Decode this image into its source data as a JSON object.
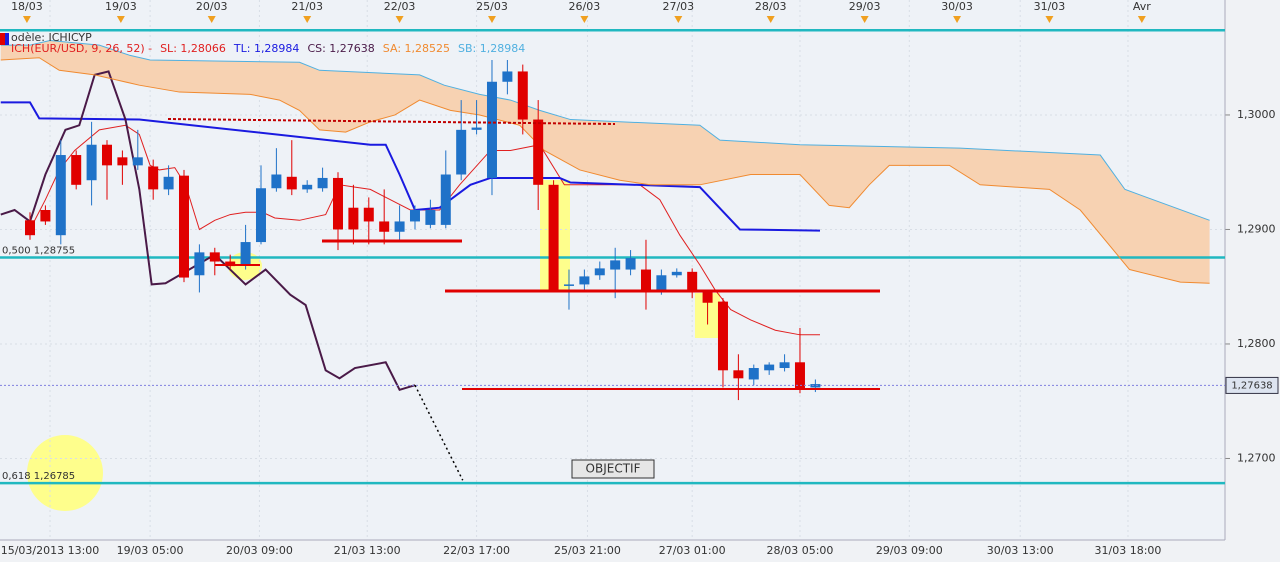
{
  "chart_data": {
    "type": "candlestick",
    "xlim": [
      -1.948,
      77.6
    ],
    "ylim": [
      1.26288,
      1.31004
    ],
    "grid": true,
    "xticks": [
      {
        "value": 1.3,
        "label": "15/03/2013 13:00"
      },
      {
        "value": 7.8,
        "label": "19/03 05:00"
      },
      {
        "value": 14.9,
        "label": "20/03 09:00"
      },
      {
        "value": 21.9,
        "label": "21/03 13:00"
      },
      {
        "value": 29.0,
        "label": "22/03 17:00"
      },
      {
        "value": 36.2,
        "label": "25/03 21:00"
      },
      {
        "value": 43.0,
        "label": "27/03 01:00"
      },
      {
        "value": 50.0,
        "label": "28/03 05:00"
      },
      {
        "value": 57.1,
        "label": "29/03 09:00"
      },
      {
        "value": 64.3,
        "label": "30/03 13:00"
      },
      {
        "value": 71.3,
        "label": "31/03 18:00"
      }
    ],
    "x2ticks": [
      {
        "value": -0.2,
        "label": "18/03"
      },
      {
        "value": 5.9,
        "label": "19/03"
      },
      {
        "value": 11.8,
        "label": "20/03"
      },
      {
        "value": 18.0,
        "label": "21/03"
      },
      {
        "value": 24.0,
        "label": "22/03"
      },
      {
        "value": 30.0,
        "label": "25/03"
      },
      {
        "value": 36.0,
        "label": "26/03"
      },
      {
        "value": 42.1,
        "label": "27/03"
      },
      {
        "value": 48.1,
        "label": "28/03"
      },
      {
        "value": 54.2,
        "label": "29/03"
      },
      {
        "value": 60.2,
        "label": "30/03"
      },
      {
        "value": 66.2,
        "label": "31/03"
      },
      {
        "value": 72.2,
        "label": "Avr"
      }
    ],
    "yticks": [
      {
        "value": 1.3,
        "label": "1,3000"
      },
      {
        "value": 1.29,
        "label": "1,2900"
      },
      {
        "value": 1.28,
        "label": "1,2800"
      },
      {
        "value": 1.27,
        "label": "1,2700"
      }
    ],
    "model_label": "odèle: ICHICYP",
    "indicator_label": {
      "text": "ICH(EUR/USD, 9, 26, 52) -",
      "color": "#e02020"
    },
    "up_color": "#1f72c8",
    "down_color": "#e00000",
    "cloud_color": "#f7d2b2",
    "candles": {
      "x": [
        0,
        1,
        2,
        3,
        4,
        5,
        6,
        7,
        8,
        9,
        10,
        11,
        12,
        13,
        14,
        15,
        16,
        17,
        18,
        19,
        20,
        21,
        22,
        23,
        24,
        25,
        26,
        27,
        28,
        29,
        30,
        31,
        32,
        33,
        34,
        35,
        36,
        37,
        38,
        39,
        40,
        41,
        42,
        43,
        44,
        45,
        46,
        47,
        48,
        49,
        50,
        51
      ],
      "open": [
        1.2908,
        1.2917,
        1.2895,
        1.2965,
        1.2943,
        1.2974,
        1.2963,
        1.2956,
        1.2955,
        1.2935,
        1.2947,
        1.286,
        1.288,
        1.2872,
        1.2869,
        1.2889,
        1.2936,
        1.2946,
        1.2935,
        1.2936,
        1.2945,
        1.2919,
        1.2919,
        1.2907,
        1.2898,
        1.2907,
        1.2904,
        1.2904,
        1.2948,
        1.2987,
        1.2945,
        1.3029,
        1.3038,
        1.2996,
        1.2939,
        1.2851,
        1.2852,
        1.286,
        1.2865,
        1.2865,
        1.2865,
        1.2847,
        1.286,
        1.2863,
        1.2845,
        1.2837,
        1.2777,
        1.2769,
        1.2777,
        1.2779,
        1.2784,
        1.2762
      ],
      "high": [
        1.2915,
        1.2921,
        1.2978,
        1.2969,
        1.2994,
        1.2978,
        1.2969,
        1.2987,
        1.2961,
        1.2956,
        1.2952,
        1.2887,
        1.2884,
        1.2878,
        1.2904,
        1.2956,
        1.2971,
        1.2978,
        1.2943,
        1.2954,
        1.295,
        1.2939,
        1.2928,
        1.2935,
        1.2921,
        1.2921,
        1.2926,
        1.2969,
        1.3013,
        1.3013,
        1.3048,
        1.3048,
        1.3044,
        1.3013,
        1.2943,
        1.2865,
        1.2865,
        1.2872,
        1.2884,
        1.2882,
        1.2891,
        1.2865,
        1.2866,
        1.2866,
        1.2847,
        1.284,
        1.2791,
        1.2782,
        1.2784,
        1.2791,
        1.2814,
        1.2769
      ],
      "low": [
        1.2891,
        1.2904,
        1.2887,
        1.2935,
        1.2921,
        1.2926,
        1.2939,
        1.2952,
        1.2926,
        1.293,
        1.2854,
        1.2845,
        1.286,
        1.2865,
        1.2865,
        1.2887,
        1.2933,
        1.293,
        1.2932,
        1.2933,
        1.2882,
        1.2887,
        1.2887,
        1.2887,
        1.2891,
        1.29,
        1.2901,
        1.2901,
        1.2943,
        1.2983,
        1.293,
        1.3018,
        1.2983,
        1.2917,
        1.2845,
        1.283,
        1.2847,
        1.2856,
        1.284,
        1.286,
        1.283,
        1.2843,
        1.2858,
        1.284,
        1.2817,
        1.2762,
        1.2751,
        1.2764,
        1.2773,
        1.2776,
        1.2757,
        1.2758
      ],
      "close": [
        1.2895,
        1.2907,
        1.2965,
        1.2939,
        1.2974,
        1.2956,
        1.2956,
        1.2963,
        1.2935,
        1.2946,
        1.2858,
        1.288,
        1.2872,
        1.2868,
        1.2889,
        1.2936,
        1.2948,
        1.2935,
        1.2939,
        1.2945,
        1.29,
        1.29,
        1.2907,
        1.2898,
        1.2907,
        1.2917,
        1.2917,
        1.2948,
        1.2987,
        1.2989,
        1.3029,
        1.3038,
        1.2996,
        1.2939,
        1.2847,
        1.2852,
        1.2859,
        1.2866,
        1.2873,
        1.2875,
        1.2847,
        1.286,
        1.2863,
        1.2845,
        1.2836,
        1.2777,
        1.277,
        1.2779,
        1.2782,
        1.2784,
        1.276,
        1.2765
      ]
    },
    "series": [
      {
        "name": "SL: 1,28066",
        "color": "#e02020",
        "width": 1,
        "x": [
          0,
          1.0,
          1.9,
          2.9,
          4.5,
          6.2,
          7.1,
          7.8,
          8.4,
          9.4,
          10.1,
          11.0,
          12.0,
          13.0,
          14.0,
          15.1,
          15.9,
          17.5,
          19.2,
          20.1,
          21.1,
          22.1,
          23.4,
          24.7,
          26.6,
          27.9,
          29.9,
          31.2,
          33.1,
          34.7,
          39.6,
          40.9,
          42.2,
          43.5,
          44.5,
          45.5,
          46.8,
          48.4,
          50.0,
          51.3
        ],
        "values": [
          1.29,
          1.2926,
          1.2952,
          1.2969,
          1.2987,
          1.2991,
          1.2983,
          1.2956,
          1.2952,
          1.2954,
          1.2939,
          1.29,
          1.2908,
          1.2913,
          1.2915,
          1.2915,
          1.291,
          1.2908,
          1.2913,
          1.2939,
          1.2937,
          1.2935,
          1.2926,
          1.2917,
          1.2917,
          1.2939,
          1.2969,
          1.2969,
          1.2974,
          1.2939,
          1.2939,
          1.2926,
          1.2895,
          1.2869,
          1.2847,
          1.283,
          1.2821,
          1.2812,
          1.2808,
          1.2808
        ]
      },
      {
        "name": "TL: 1,28984",
        "color": "#1a1ae0",
        "width": 2,
        "x": [
          -1.9,
          0,
          0.6,
          7.1,
          22.1,
          23.1,
          24.0,
          25.0,
          26.6,
          28.6,
          29.9,
          34.4,
          35.1,
          43.5,
          46.1,
          51.3
        ],
        "values": [
          1.3011,
          1.3011,
          1.2997,
          1.2996,
          1.2974,
          1.2974,
          1.2948,
          1.2917,
          1.2919,
          1.2939,
          1.2945,
          1.2945,
          1.2941,
          1.2937,
          1.29,
          1.2899
        ]
      },
      {
        "name": "CS: 1,27638",
        "color": "#4a1a48",
        "width": 2,
        "x": [
          -1.9,
          -1.0,
          0,
          1.0,
          2.3,
          3.2,
          4.2,
          5.1,
          6.2,
          7.1,
          7.9,
          8.8,
          9.7,
          12.0,
          13.0,
          14.0,
          15.3,
          16.9,
          17.9,
          19.2,
          20.1,
          21.1,
          23.1,
          24.0,
          25.0
        ],
        "values": [
          1.2913,
          1.2917,
          1.2907,
          1.2948,
          1.2987,
          1.2991,
          1.3035,
          1.3038,
          1.2996,
          1.2935,
          1.2852,
          1.2853,
          1.286,
          1.2878,
          1.2865,
          1.2852,
          1.2865,
          1.2843,
          1.2834,
          1.2777,
          1.277,
          1.2779,
          1.2784,
          1.276,
          1.2764
        ]
      },
      {
        "name": "SA: 1,28525",
        "color": "#f08a30",
        "width": 1,
        "x": [
          -1.9,
          0.6,
          1.9,
          4.2,
          5.5,
          7.1,
          9.7,
          14.3,
          16.2,
          17.5,
          18.8,
          20.5,
          22.1,
          23.7,
          25.3,
          27.3,
          29.2,
          31.8,
          33.4,
          35.7,
          38.3,
          40.3,
          43.5,
          46.8,
          50.0,
          51.9,
          53.2,
          54.5,
          55.8,
          59.7,
          61.7,
          66.2,
          68.2,
          71.4,
          74.7,
          76.6
        ],
        "values": [
          1.3048,
          1.305,
          1.3039,
          1.3035,
          1.3031,
          1.3026,
          1.302,
          1.3018,
          1.3013,
          1.3004,
          1.2987,
          1.2985,
          1.2994,
          1.3,
          1.3013,
          1.3004,
          1.3,
          1.2991,
          1.2969,
          1.2952,
          1.2943,
          1.2939,
          1.2939,
          1.2948,
          1.2948,
          1.2921,
          1.2919,
          1.2939,
          1.2956,
          1.2956,
          1.2939,
          1.2935,
          1.2917,
          1.2865,
          1.2854,
          1.2853
        ]
      },
      {
        "name": "SB: 1,28984",
        "color": "#50b0e0",
        "width": 1,
        "x": [
          -1.9,
          0,
          1.3,
          4.5,
          6.5,
          7.8,
          17.5,
          18.8,
          25.3,
          26.9,
          29.2,
          31.2,
          33.1,
          35.1,
          43.5,
          44.8,
          50.0,
          60.4,
          69.5,
          71.1,
          76.6
        ],
        "values": [
          1.3061,
          1.3061,
          1.3065,
          1.3061,
          1.3052,
          1.3048,
          1.3046,
          1.3039,
          1.3035,
          1.3026,
          1.3018,
          1.3013,
          1.3004,
          1.2996,
          1.2991,
          1.2978,
          1.2974,
          1.2971,
          1.2965,
          1.2935,
          1.2908
        ]
      },
      {
        "color": "#000000",
        "width": 1.5,
        "dash": "2 3",
        "x": [
          25.0,
          28.1
        ],
        "values": [
          1.2764,
          1.2681
        ]
      }
    ],
    "levels": [
      {
        "value": 1.3074,
        "color": "#20b8c0"
      },
      {
        "value": 1.28755,
        "label": "0,500 1,28755",
        "color": "#20b8c0"
      },
      {
        "value": 1.26785,
        "label": "0,618 1,26785",
        "color": "#20b8c0"
      }
    ],
    "last_price": {
      "value": 1.27638,
      "label": "1,27638"
    },
    "annotation": "OBJECTIF"
  }
}
